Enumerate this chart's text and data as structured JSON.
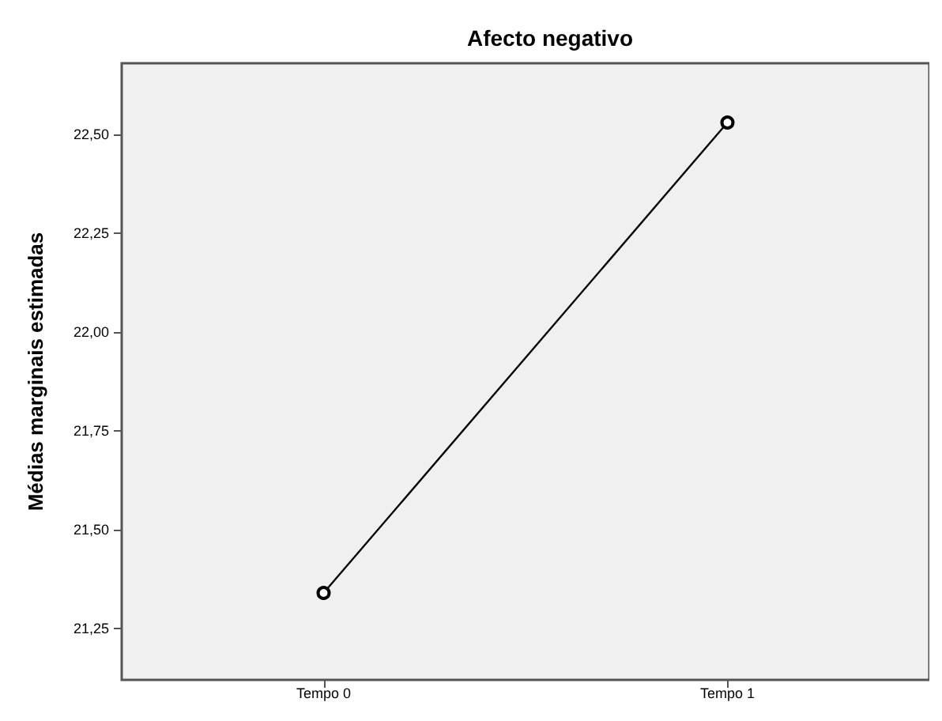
{
  "chart_data": {
    "type": "line",
    "title": "Afecto negativo",
    "ylabel": "Médias marginais estimadas",
    "categories": [
      "Tempo 0",
      "Tempo 1"
    ],
    "series": [
      {
        "color": "#000000",
        "values": [
          21.34,
          22.53
        ]
      }
    ],
    "ylim": [
      21.12,
      22.68
    ],
    "yticks": [
      {
        "value": 21.25,
        "label": "21,25"
      },
      {
        "value": 21.5,
        "label": "21,50"
      },
      {
        "value": 21.75,
        "label": "21,75"
      },
      {
        "value": 22,
        "label": "22,00"
      },
      {
        "value": 22.25,
        "label": "22,25"
      },
      {
        "value": 22.5,
        "label": "22,50"
      }
    ],
    "grid": false,
    "marker": "circle",
    "line_style": "solid"
  }
}
